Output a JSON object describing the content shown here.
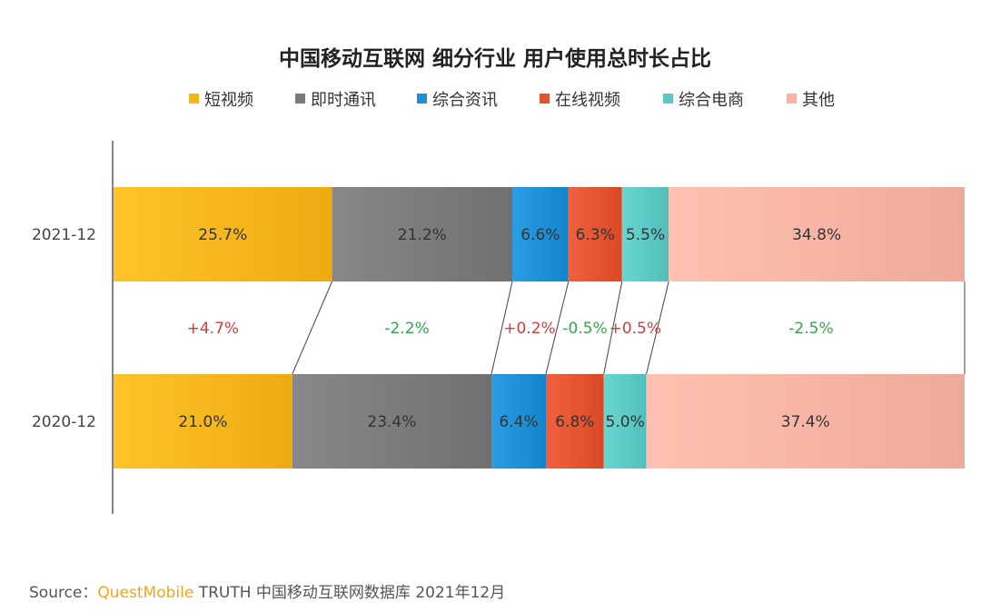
{
  "chart_data": {
    "type": "bar",
    "stacked": true,
    "normalized": true,
    "orientation": "horizontal",
    "title": "中国移动互联网 细分行业 用户使用总时长占比",
    "categories": [
      "2021-12",
      "2020-12"
    ],
    "series": [
      {
        "name": "短视频",
        "color": "#f7b51c",
        "values": [
          25.7,
          21.0
        ],
        "labels": [
          "25.7%",
          "21.0%"
        ],
        "delta": "+4.7%",
        "delta_color": "#d83a3a"
      },
      {
        "name": "即时通讯",
        "color": "#7a7a7a",
        "values": [
          21.2,
          23.4
        ],
        "labels": [
          "21.2%",
          "23.4%"
        ],
        "delta": "-2.2%",
        "delta_color": "#2da84e"
      },
      {
        "name": "综合资讯",
        "color": "#1c8fd6",
        "values": [
          6.6,
          6.4
        ],
        "labels": [
          "6.6%",
          "6.4%"
        ],
        "delta": "+0.2%",
        "delta_color": "#d83a3a"
      },
      {
        "name": "在线视频",
        "color": "#e4532f",
        "values": [
          6.3,
          6.8
        ],
        "labels": [
          "6.3%",
          "6.8%"
        ],
        "delta": "-0.5%",
        "delta_color": "#2da84e"
      },
      {
        "name": "综合电商",
        "color": "#5cc8c4",
        "values": [
          5.5,
          5.0
        ],
        "labels": [
          "5.5%",
          "5.0%"
        ],
        "delta": "+0.5%",
        "delta_color": "#d83a3a"
      },
      {
        "name": "其他",
        "color": "#f8b3a3",
        "values": [
          34.8,
          37.4
        ],
        "labels": [
          "34.8%",
          "37.4%"
        ],
        "delta": "-2.5%",
        "delta_color": "#2da84e"
      }
    ],
    "legend_position": "top",
    "grid": false
  },
  "source": {
    "prefix": "Source：",
    "brand": "QuestMobile",
    "text": " TRUTH 中国移动互联网数据库 2021年12月"
  }
}
